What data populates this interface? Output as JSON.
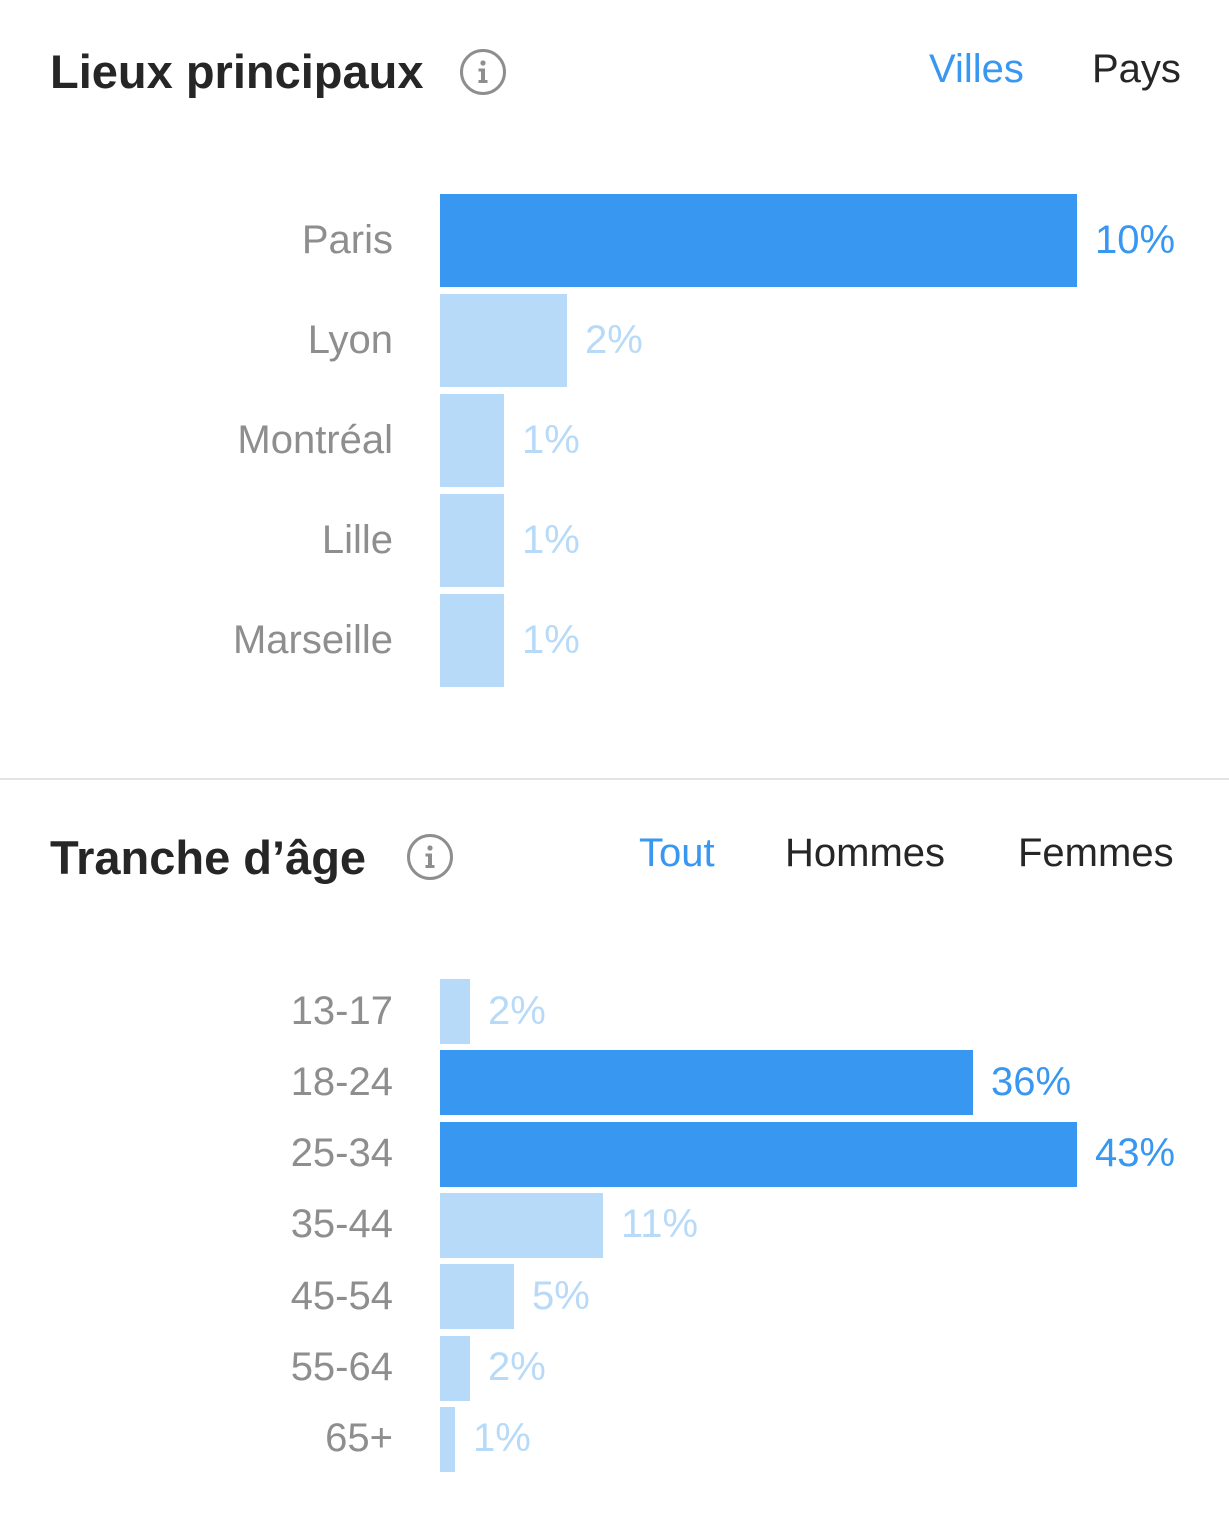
{
  "colors": {
    "accent": "#3897f0",
    "bar_strong": "#3897f0",
    "bar_light": "#b8daf9",
    "label_light": "#b8daf9",
    "text_dark": "#262626",
    "text_gray": "#8e8e8e"
  },
  "locations": {
    "title": "Lieux principaux",
    "info_icon": "info-icon",
    "tabs": [
      {
        "label": "Villes",
        "active": true
      },
      {
        "label": "Pays",
        "active": false
      }
    ]
  },
  "age": {
    "title": "Tranche d’âge",
    "info_icon": "info-icon",
    "tabs": [
      {
        "label": "Tout",
        "active": true
      },
      {
        "label": "Hommes",
        "active": false
      },
      {
        "label": "Femmes",
        "active": false
      }
    ]
  },
  "chart_data": [
    {
      "type": "bar",
      "orientation": "horizontal",
      "title": "Lieux principaux",
      "categories": [
        "Paris",
        "Lyon",
        "Montréal",
        "Lille",
        "Marseille"
      ],
      "values": [
        10,
        2,
        1,
        1,
        1
      ],
      "value_labels": [
        "10%",
        "2%",
        "1%",
        "1%",
        "1%"
      ],
      "highlighted": [
        true,
        false,
        false,
        false,
        false
      ],
      "unit": "%"
    },
    {
      "type": "bar",
      "orientation": "horizontal",
      "title": "Tranche d’âge",
      "categories": [
        "13-17",
        "18-24",
        "25-34",
        "35-44",
        "45-54",
        "55-64",
        "65+"
      ],
      "values": [
        2,
        36,
        43,
        11,
        5,
        2,
        1
      ],
      "value_labels": [
        "2%",
        "36%",
        "43%",
        "11%",
        "5%",
        "2%",
        "1%"
      ],
      "highlighted": [
        false,
        true,
        true,
        false,
        false,
        false,
        false
      ],
      "unit": "%"
    }
  ]
}
